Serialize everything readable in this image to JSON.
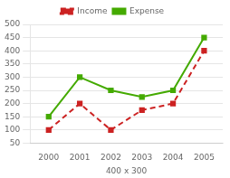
{
  "chart_data": {
    "type": "line",
    "xlabel": "400 x 300",
    "x": [
      2000,
      2001,
      2002,
      2003,
      2004,
      2005
    ],
    "series": [
      {
        "name": "Income",
        "color": "#cc2222",
        "values": [
          100,
          200,
          100,
          175,
          200,
          400
        ],
        "line_style": "dashed",
        "marker": "square"
      },
      {
        "name": "Expense",
        "color": "#44aa00",
        "values": [
          150,
          300,
          250,
          225,
          250,
          450
        ],
        "line_style": "solid",
        "marker": "square"
      }
    ],
    "xlim": [
      1999.4,
      2005.6
    ],
    "xticks": [
      2000,
      2001,
      2002,
      2003,
      2004,
      2005
    ],
    "ylim": [
      50,
      500
    ],
    "yticks": [
      50,
      100,
      150,
      200,
      250,
      300,
      350,
      400,
      450,
      500
    ],
    "grid": "y",
    "legend": "top"
  }
}
